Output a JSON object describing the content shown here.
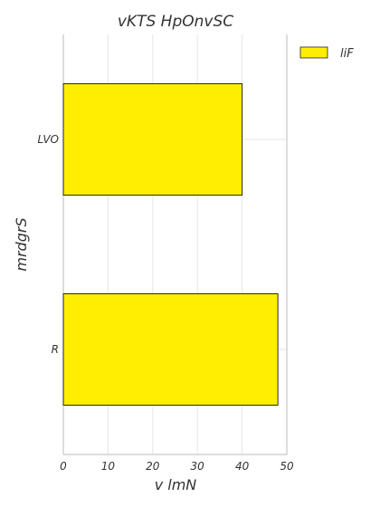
{
  "chart_data": {
    "type": "bar",
    "orientation": "horizontal",
    "title": "vKTS HpOnvSC",
    "xlabel": "v lmN",
    "ylabel": "mrdgrS",
    "categories": [
      "LVO",
      "R"
    ],
    "series": [
      {
        "name": "liF",
        "values": [
          40,
          48
        ],
        "color": "#ffee00"
      }
    ],
    "xlim": [
      0,
      50
    ],
    "xticks": [
      0,
      10,
      20,
      30,
      40,
      50
    ],
    "grid": true,
    "legend": "top-right-outside"
  }
}
